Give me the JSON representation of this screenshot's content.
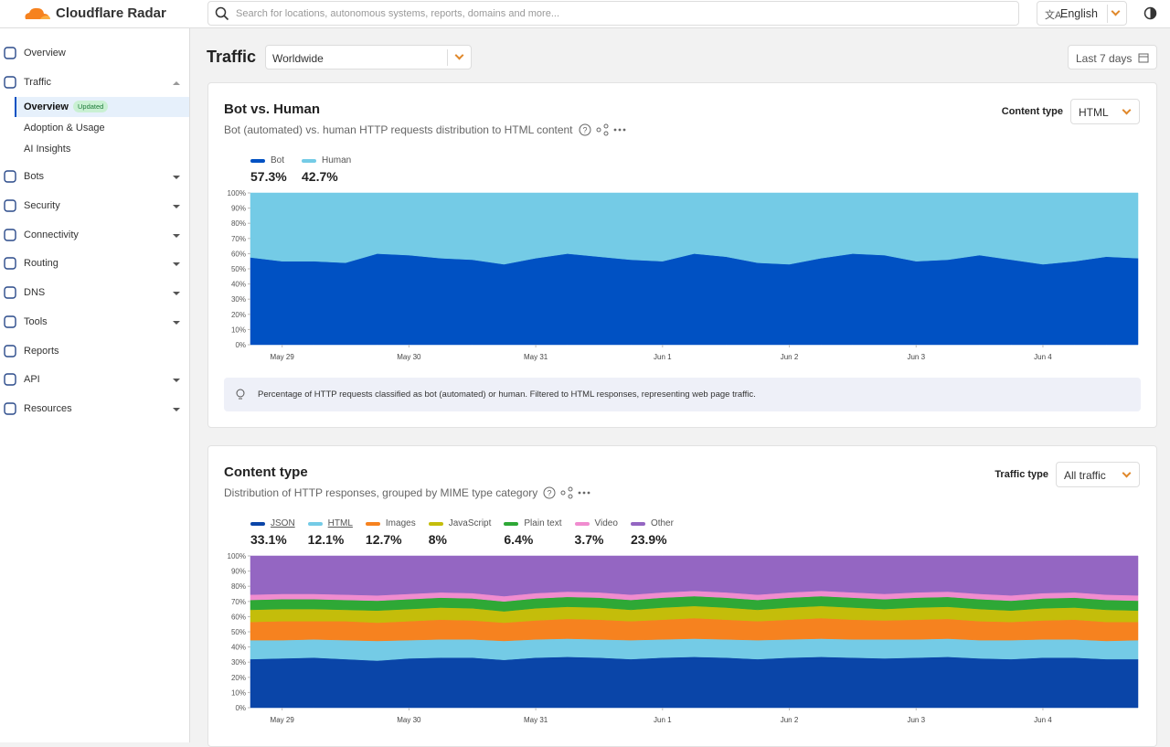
{
  "header": {
    "brand": "Cloudflare Radar",
    "search_placeholder": "Search for locations, autonomous systems, reports, domains and more...",
    "language": "English"
  },
  "sidebar": {
    "items": [
      "Overview",
      "Traffic",
      "Bots",
      "Security",
      "Connectivity",
      "Routing",
      "DNS",
      "Tools",
      "Reports",
      "API",
      "Resources"
    ],
    "traffic_subitems": [
      "Overview",
      "Adoption & Usage",
      "AI Insights"
    ],
    "badge": "Updated"
  },
  "page": {
    "title": "Traffic",
    "location": "Worldwide",
    "date_range": "Last 7 days"
  },
  "chart_data": [
    {
      "type": "area",
      "stacked": true,
      "title": "Bot vs. Human",
      "subtitle": "Bot (automated) vs. human HTTP requests distribution to HTML content",
      "control_label": "Content type",
      "control_value": "HTML",
      "note": "Percentage of HTTP requests classified as bot (automated) or human. Filtered to HTML responses, representing web page traffic.",
      "x": [
        0.75,
        1,
        1.25,
        1.5,
        1.75,
        2,
        2.25,
        2.5,
        2.75,
        3,
        3.25,
        3.5,
        3.75,
        4,
        4.25,
        4.5,
        4.75,
        5,
        5.25,
        5.5,
        5.75,
        6,
        6.25,
        6.5,
        6.75,
        7,
        7.25,
        7.5,
        7.75
      ],
      "xlim": [
        0.75,
        7.75
      ],
      "xticks": [
        {
          "value": 1,
          "label": "May 29"
        },
        {
          "value": 2,
          "label": "May 30"
        },
        {
          "value": 3,
          "label": "May 31"
        },
        {
          "value": 4,
          "label": "Jun 1"
        },
        {
          "value": 5,
          "label": "Jun 2"
        },
        {
          "value": 6,
          "label": "Jun 3"
        },
        {
          "value": 7,
          "label": "Jun 4"
        }
      ],
      "ylim": [
        0,
        100
      ],
      "yticks": [
        {
          "value": 0,
          "label": "0%"
        },
        {
          "value": 10,
          "label": "10%"
        },
        {
          "value": 20,
          "label": "20%"
        },
        {
          "value": 30,
          "label": "30%"
        },
        {
          "value": 40,
          "label": "40%"
        },
        {
          "value": 50,
          "label": "50%"
        },
        {
          "value": 60,
          "label": "60%"
        },
        {
          "value": 70,
          "label": "70%"
        },
        {
          "value": 80,
          "label": "80%"
        },
        {
          "value": 90,
          "label": "90%"
        },
        {
          "value": 100,
          "label": "100%"
        }
      ],
      "series": [
        {
          "name": "Bot",
          "color": "#0051c3",
          "summary_label": "57.3%",
          "values": [
            57.5,
            55,
            55,
            54,
            60,
            59,
            57,
            56,
            53,
            57,
            60,
            58,
            56,
            55,
            60,
            58,
            54,
            53,
            57,
            60,
            59,
            55,
            56,
            59,
            56,
            53,
            55,
            58,
            57
          ]
        },
        {
          "name": "Human",
          "color": "#74cbe6",
          "summary_label": "42.7%",
          "values": [
            42.5,
            45,
            45,
            46,
            40,
            41,
            43,
            44,
            47,
            43,
            40,
            42,
            44,
            45,
            40,
            42,
            46,
            47,
            43,
            40,
            41,
            45,
            44,
            41,
            44,
            47,
            45,
            42,
            43
          ]
        }
      ]
    },
    {
      "type": "area",
      "stacked": true,
      "title": "Content type",
      "subtitle": "Distribution of HTTP responses, grouped by MIME type category",
      "control_label": "Traffic type",
      "control_value": "All traffic",
      "x": [
        0.75,
        1,
        1.25,
        1.5,
        1.75,
        2,
        2.25,
        2.5,
        2.75,
        3,
        3.25,
        3.5,
        3.75,
        4,
        4.25,
        4.5,
        4.75,
        5,
        5.25,
        5.5,
        5.75,
        6,
        6.25,
        6.5,
        6.75,
        7,
        7.25,
        7.5,
        7.75
      ],
      "xlim": [
        0.75,
        7.75
      ],
      "xticks": [
        {
          "value": 1,
          "label": "May 29"
        },
        {
          "value": 2,
          "label": "May 30"
        },
        {
          "value": 3,
          "label": "May 31"
        },
        {
          "value": 4,
          "label": "Jun 1"
        },
        {
          "value": 5,
          "label": "Jun 2"
        },
        {
          "value": 6,
          "label": "Jun 3"
        },
        {
          "value": 7,
          "label": "Jun 4"
        }
      ],
      "ylim": [
        0,
        100
      ],
      "yticks": [
        {
          "value": 0,
          "label": "0%"
        },
        {
          "value": 10,
          "label": "10%"
        },
        {
          "value": 20,
          "label": "20%"
        },
        {
          "value": 30,
          "label": "30%"
        },
        {
          "value": 40,
          "label": "40%"
        },
        {
          "value": 50,
          "label": "50%"
        },
        {
          "value": 60,
          "label": "60%"
        },
        {
          "value": 70,
          "label": "70%"
        },
        {
          "value": 80,
          "label": "80%"
        },
        {
          "value": 90,
          "label": "90%"
        },
        {
          "value": 100,
          "label": "100%"
        }
      ],
      "series": [
        {
          "name": "JSON",
          "color": "#0a45a8",
          "summary_label": "33.1%",
          "values": [
            32,
            32.5,
            33,
            32,
            31,
            32.5,
            33,
            33,
            31.5,
            33,
            33.5,
            33,
            32,
            33,
            33.5,
            33,
            32,
            33,
            33.5,
            33,
            32.5,
            33,
            33.5,
            32.5,
            32,
            33,
            33,
            32,
            32
          ]
        },
        {
          "name": "HTML",
          "color": "#74cbe6",
          "summary_label": "12.1%",
          "values": [
            12.5,
            12,
            12,
            12.5,
            13,
            12,
            12,
            12,
            12.5,
            12,
            12,
            12,
            12.5,
            12,
            12,
            12,
            12.5,
            12,
            12,
            12,
            12.5,
            12,
            12,
            12,
            12.5,
            12,
            12,
            12,
            12.5
          ]
        },
        {
          "name": "Images",
          "color": "#f6821f",
          "summary_label": "12.7%",
          "values": [
            12,
            12.5,
            12,
            12.5,
            12,
            12.5,
            13,
            12.5,
            12,
            12.5,
            13,
            13,
            12.5,
            13,
            13.5,
            13,
            12.5,
            13,
            13.5,
            13,
            12.5,
            13,
            13,
            12.5,
            12,
            12.5,
            13,
            12.5,
            12
          ]
        },
        {
          "name": "JavaScript",
          "color": "#c4bd0a",
          "summary_label": "8%",
          "values": [
            8,
            8,
            8,
            7.5,
            8,
            8,
            8,
            8,
            7.5,
            8,
            8,
            8,
            7.5,
            8,
            8,
            8,
            7.5,
            8,
            8,
            8,
            7.5,
            8,
            8,
            8,
            7.5,
            8,
            8,
            8,
            7.5
          ]
        },
        {
          "name": "Plain text",
          "color": "#2ea836",
          "summary_label": "6.4%",
          "values": [
            6.5,
            6.5,
            6.5,
            6.5,
            6.5,
            6.5,
            6.5,
            6.5,
            6.5,
            6.5,
            6.5,
            6.5,
            6.5,
            6.5,
            6.5,
            6.5,
            6.5,
            6.5,
            6.5,
            6.5,
            6.5,
            6.5,
            6.5,
            6.5,
            6.5,
            6.5,
            6.5,
            6.5,
            6.5
          ]
        },
        {
          "name": "Video",
          "color": "#f08ccf",
          "summary_label": "3.7%",
          "values": [
            3.5,
            3.5,
            3.5,
            3.5,
            3.5,
            3.5,
            3.5,
            3.5,
            3.5,
            3.5,
            3.5,
            3.5,
            3.5,
            3.5,
            3.5,
            3.5,
            3.5,
            3.5,
            3.5,
            3.5,
            3.5,
            3.5,
            3.5,
            3.5,
            3.5,
            3.5,
            3.5,
            3.5,
            3.5
          ]
        },
        {
          "name": "Other",
          "color": "#9466c2",
          "summary_label": "23.9%",
          "values": [
            25.5,
            25,
            25,
            25.5,
            26,
            25,
            24,
            24.5,
            26.5,
            24.5,
            23.5,
            24,
            25.5,
            24,
            23,
            24,
            25.5,
            24,
            23,
            24,
            25,
            24,
            23.5,
            25,
            26,
            24.5,
            24,
            25.5,
            26
          ]
        }
      ]
    }
  ]
}
